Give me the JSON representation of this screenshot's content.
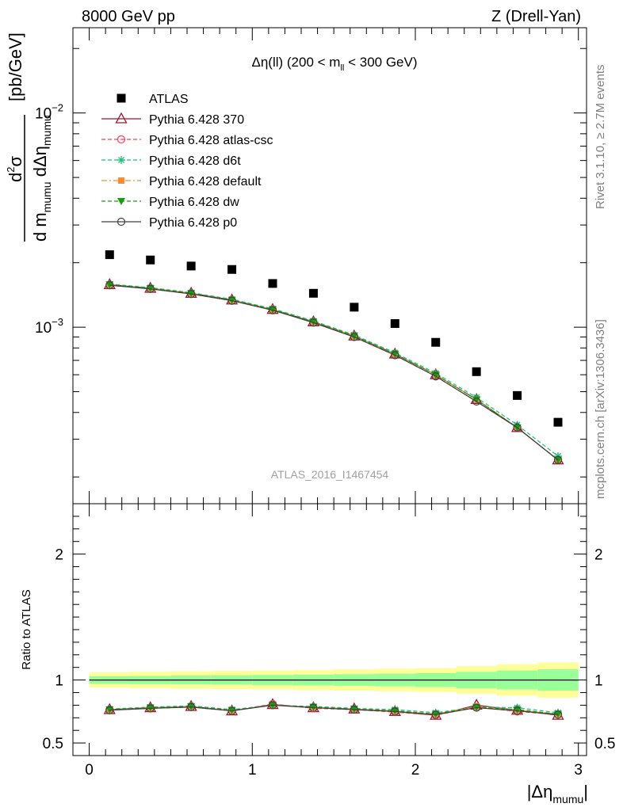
{
  "header": {
    "left": "8000 GeV pp",
    "right": "Z (Drell-Yan)"
  },
  "side_labels": {
    "rivet": "Rivet 3.1.10, ≥ 2.7M events",
    "mcplots": "mcplots.cern.ch [arXiv:1306.3436]"
  },
  "watermark": "ATLAS_2016_I1467454",
  "colors": {
    "atlas": "#000000",
    "p370": "#a0142a",
    "atlascsc": "#ff3c5a",
    "d6t": "#18c07a",
    "default": "#ff8a30",
    "dw": "#10a010",
    "p0": "#404040",
    "band_outer": "#ffff99",
    "band_inner": "#99ff99"
  },
  "chart_data": [
    {
      "type": "scatter",
      "title_parts": {
        "a": "Δη(ll) (200 < m",
        "sub": "ll",
        "b": " < 300 GeV)"
      },
      "ylabel_parts": {
        "d2": "d",
        "sup2": "2",
        "sigma": "σ",
        "den_a": "d m",
        "den_sub1": "mumu",
        "den_b": " dΔη",
        "den_sub2": "mumu",
        "unit": "[pb/GeV]"
      },
      "y_scale": "log",
      "ylim": [
        0.00015,
        0.025
      ],
      "xlim": [
        -0.1,
        3.05
      ],
      "y_ticks": [
        {
          "value": 0.001,
          "base": "10",
          "exp": "−3"
        },
        {
          "value": 0.01,
          "base": "10",
          "exp": "−2"
        }
      ],
      "x": [
        0.125,
        0.375,
        0.625,
        0.875,
        1.125,
        1.375,
        1.625,
        1.875,
        2.125,
        2.375,
        2.625,
        2.875
      ],
      "series": [
        {
          "key": "atlas",
          "name": "ATLAS",
          "marker": "square",
          "values": [
            0.00218,
            0.00206,
            0.00193,
            0.00186,
            0.0016,
            0.00144,
            0.00124,
            0.00104,
            0.00085,
            0.00062,
            0.00048,
            0.00036
          ]
        },
        {
          "key": "p370",
          "name": "Pythia 6.428 370",
          "marker": "triangle-open",
          "line": "solid",
          "values": [
            0.00158,
            0.00152,
            0.00144,
            0.00134,
            0.00121,
            0.00106,
            0.00091,
            0.00075,
            0.0006,
            0.00046,
            0.00034,
            0.00024
          ]
        },
        {
          "key": "atlascsc",
          "name": "Pythia 6.428 atlas-csc",
          "marker": "circle-open",
          "line": "dashed",
          "values": [
            0.00157,
            0.00151,
            0.00143,
            0.00133,
            0.00121,
            0.00105,
            0.0009,
            0.00074,
            0.00059,
            0.00045,
            0.00034,
            0.00024
          ]
        },
        {
          "key": "d6t",
          "name": "Pythia 6.428 d6t",
          "marker": "star",
          "line": "dashed",
          "values": [
            0.00159,
            0.00153,
            0.00145,
            0.00135,
            0.00122,
            0.00107,
            0.00092,
            0.00076,
            0.00061,
            0.00047,
            0.00035,
            0.00025
          ]
        },
        {
          "key": "default",
          "name": "Pythia 6.428 default",
          "marker": "square-filled",
          "line": "dashdot",
          "values": [
            0.00158,
            0.00152,
            0.00144,
            0.00134,
            0.00121,
            0.00106,
            0.00091,
            0.00075,
            0.0006,
            0.00046,
            0.00034,
            0.00024
          ]
        },
        {
          "key": "dw",
          "name": "Pythia 6.428 dw",
          "marker": "triangle-down",
          "line": "dashed",
          "values": [
            0.00158,
            0.00152,
            0.00144,
            0.00134,
            0.00121,
            0.00106,
            0.00091,
            0.00075,
            0.0006,
            0.00046,
            0.00034,
            0.00024
          ]
        },
        {
          "key": "p0",
          "name": "Pythia 6.428 p0",
          "marker": "circle-open",
          "line": "solid",
          "values": [
            0.00157,
            0.00151,
            0.00143,
            0.00133,
            0.0012,
            0.00105,
            0.0009,
            0.00074,
            0.00059,
            0.00045,
            0.00034,
            0.00024
          ]
        }
      ]
    },
    {
      "type": "line",
      "ylabel": "Ratio to ATLAS",
      "xlabel_parts": {
        "a": "|Δη",
        "sub": "mumu",
        "b": "|"
      },
      "ylim": [
        0.4,
        2.4
      ],
      "xlim": [
        -0.1,
        3.05
      ],
      "x_ticks": [
        "0",
        "1",
        "2",
        "3"
      ],
      "y_ticks": [
        "0.5",
        "1",
        "2"
      ],
      "x_edges": [
        0,
        0.25,
        0.5,
        0.75,
        1.0,
        1.25,
        1.5,
        1.75,
        2.0,
        2.25,
        2.5,
        2.75,
        3.0
      ],
      "band_outer": [
        0.06,
        0.065,
        0.07,
        0.072,
        0.075,
        0.08,
        0.085,
        0.09,
        0.095,
        0.11,
        0.125,
        0.14
      ],
      "band_inner": [
        0.03,
        0.032,
        0.035,
        0.037,
        0.04,
        0.043,
        0.046,
        0.05,
        0.055,
        0.065,
        0.075,
        0.085
      ],
      "x": [
        0.125,
        0.375,
        0.625,
        0.875,
        1.125,
        1.375,
        1.625,
        1.875,
        2.125,
        2.375,
        2.625,
        2.875
      ],
      "series": [
        {
          "key": "p370",
          "values": [
            0.765,
            0.78,
            0.79,
            0.755,
            0.805,
            0.78,
            0.77,
            0.75,
            0.72,
            0.8,
            0.76,
            0.72
          ]
        },
        {
          "key": "atlascsc",
          "values": [
            0.76,
            0.775,
            0.785,
            0.755,
            0.81,
            0.775,
            0.765,
            0.745,
            0.72,
            0.785,
            0.75,
            0.725
          ]
        },
        {
          "key": "d6t",
          "values": [
            0.77,
            0.785,
            0.795,
            0.765,
            0.8,
            0.79,
            0.775,
            0.765,
            0.74,
            0.785,
            0.78,
            0.74
          ]
        },
        {
          "key": "default",
          "values": [
            0.765,
            0.78,
            0.79,
            0.76,
            0.8,
            0.785,
            0.77,
            0.755,
            0.73,
            0.79,
            0.76,
            0.73
          ]
        },
        {
          "key": "dw",
          "values": [
            0.765,
            0.78,
            0.79,
            0.76,
            0.8,
            0.785,
            0.77,
            0.755,
            0.73,
            0.785,
            0.765,
            0.73
          ]
        },
        {
          "key": "p0",
          "values": [
            0.76,
            0.775,
            0.785,
            0.755,
            0.8,
            0.78,
            0.765,
            0.75,
            0.725,
            0.78,
            0.755,
            0.725
          ]
        }
      ]
    }
  ]
}
